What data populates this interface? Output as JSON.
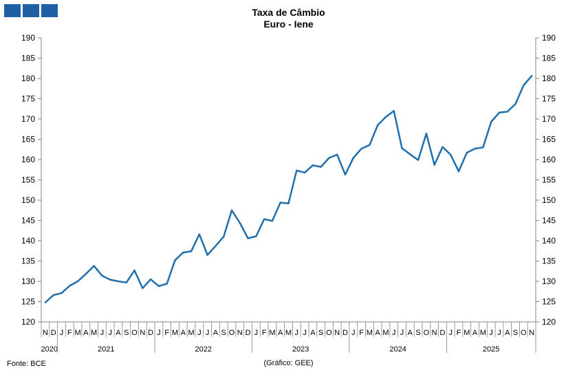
{
  "header": {
    "logo_color": "#1f5fa6",
    "title_line1": "Taxa de Câmbio",
    "title_line2": "Euro - Iene"
  },
  "footer": {
    "source": "Fonte: BCE",
    "credit": "(Gráfico: GEE)"
  },
  "chart_data": {
    "type": "line",
    "title": "Taxa de Câmbio\nEuro - Iene",
    "ylim": [
      120,
      190
    ],
    "y_ticks": [
      120,
      125,
      130,
      135,
      140,
      145,
      150,
      155,
      160,
      165,
      170,
      175,
      180,
      185,
      190
    ],
    "y_axis_sides": [
      "left",
      "right"
    ],
    "grid": false,
    "line_color": "#1f6ead",
    "x_months": [
      "N",
      "D",
      "J",
      "F",
      "M",
      "A",
      "M",
      "J",
      "J",
      "A",
      "S",
      "O",
      "N",
      "D",
      "J",
      "F",
      "M",
      "A",
      "M",
      "J",
      "J",
      "A",
      "S",
      "O",
      "N",
      "D",
      "J",
      "F",
      "M",
      "A",
      "M",
      "J",
      "J",
      "A",
      "S",
      "O",
      "N",
      "D",
      "J",
      "F",
      "M",
      "A",
      "M",
      "J",
      "J",
      "A",
      "S",
      "O",
      "N",
      "D",
      "J",
      "F",
      "M",
      "A",
      "M",
      "J",
      "J",
      "A",
      "S",
      "O",
      "N"
    ],
    "x_years": [
      {
        "label": "2020",
        "count": 2
      },
      {
        "label": "2021",
        "count": 12
      },
      {
        "label": "2022",
        "count": 12
      },
      {
        "label": "2023",
        "count": 12
      },
      {
        "label": "2024",
        "count": 12
      },
      {
        "label": "2025",
        "count": 11
      }
    ],
    "values": [
      124.8,
      126.6,
      127.1,
      128.9,
      130.0,
      131.8,
      133.8,
      131.4,
      130.4,
      130.0,
      129.7,
      132.7,
      128.3,
      130.5,
      128.8,
      129.4,
      135.2,
      137.1,
      137.4,
      141.6,
      136.5,
      138.7,
      141.0,
      147.5,
      144.4,
      140.6,
      141.1,
      145.3,
      144.9,
      149.4,
      149.2,
      157.3,
      156.8,
      158.6,
      158.2,
      160.4,
      161.2,
      156.3,
      160.4,
      162.7,
      163.6,
      168.5,
      170.5,
      172.0,
      162.8,
      161.3,
      159.9,
      166.4,
      158.7,
      163.1,
      161.2,
      157.1,
      161.7,
      162.7,
      163.0,
      169.3,
      171.6,
      171.8,
      173.7,
      178.3,
      180.6
    ]
  }
}
